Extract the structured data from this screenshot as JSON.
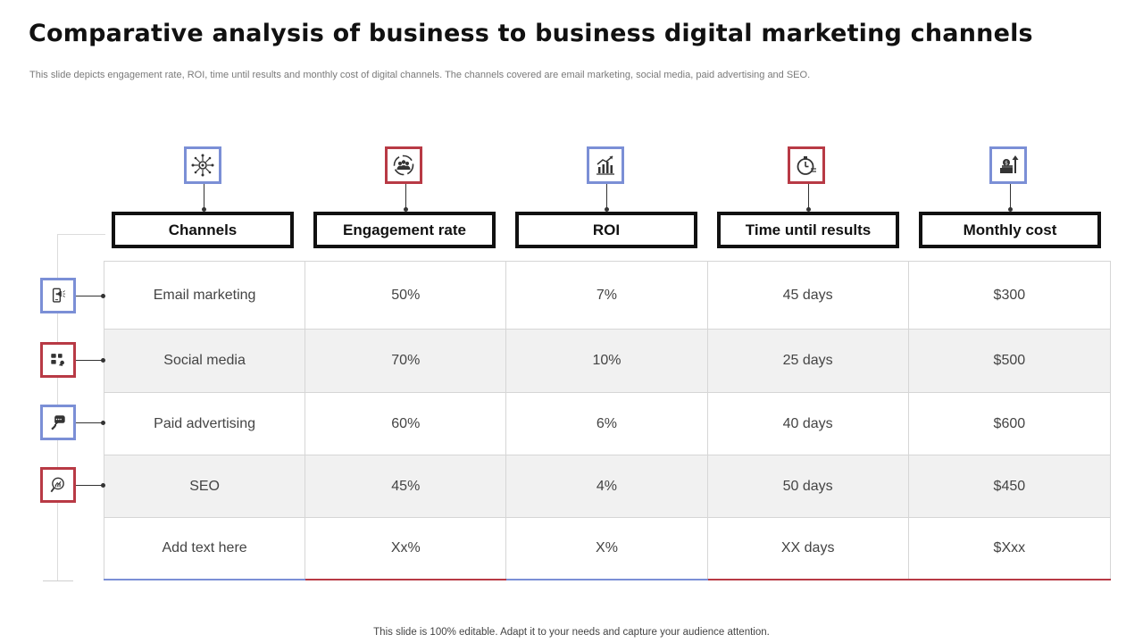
{
  "title": "Comparative analysis of business to business digital marketing channels",
  "subtitle": "This slide depicts engagement rate, ROI, time until results and monthly cost of digital channels. The channels covered are email marketing, social media, paid advertising and SEO.",
  "columns": [
    {
      "label": "Channels",
      "icon": "network-icon",
      "accent": "#7b8fd6"
    },
    {
      "label": "Engagement rate",
      "icon": "people-cycle-icon",
      "accent": "#b83a45"
    },
    {
      "label": "ROI",
      "icon": "growth-chart-icon",
      "accent": "#7b8fd6"
    },
    {
      "label": "Time until results",
      "icon": "stopwatch-icon",
      "accent": "#b83a45"
    },
    {
      "label": "Monthly cost",
      "icon": "money-up-icon",
      "accent": "#7b8fd6"
    }
  ],
  "rows": [
    {
      "icon": "mobile-marketing-icon",
      "cells": [
        "Email marketing",
        "50%",
        "7%",
        "45 days",
        "$300"
      ]
    },
    {
      "icon": "social-share-icon",
      "cells": [
        "Social media",
        "70%",
        "10%",
        "25 days",
        "$500"
      ]
    },
    {
      "icon": "chat-megaphone-icon",
      "cells": [
        "Paid advertising",
        "60%",
        "6%",
        "40 days",
        "$600"
      ]
    },
    {
      "icon": "seo-magnifier-icon",
      "cells": [
        "SEO",
        "45%",
        "4%",
        "50 days",
        "$450"
      ]
    },
    {
      "cells": [
        "Add text here",
        "Xx%",
        "X%",
        "XX days",
        "$Xxx"
      ]
    }
  ],
  "footer": "This slide is 100% editable. Adapt it to your  needs and capture your audience attention.",
  "colors": {
    "blue": "#7b8fd6",
    "red": "#b83a45",
    "row_stripe": "#f1f1f1"
  }
}
